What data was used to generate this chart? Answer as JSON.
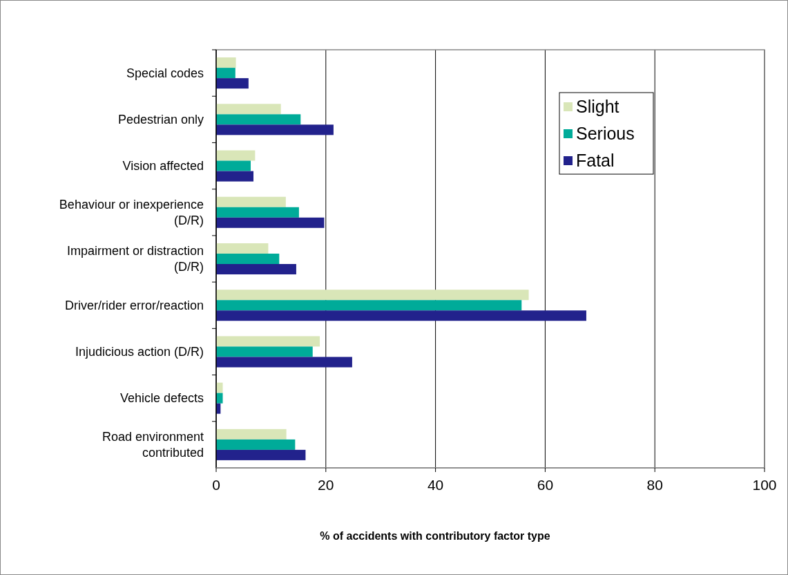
{
  "chart_data": {
    "type": "bar",
    "orientation": "horizontal",
    "xlabel": "% of accidents with contributory factor type",
    "categories": [
      "Special codes",
      "Pedestrian only",
      "Vision affected",
      "Behaviour or inexperience (D/R)",
      "Impairment or distraction (D/R)",
      "Driver/rider error/reaction",
      "Injudicious action (D/R)",
      "Vehicle defects",
      "Road environment contributed"
    ],
    "series": [
      {
        "name": "Slight",
        "color": "#d9e6b8",
        "values": [
          3.6,
          11.8,
          7.1,
          12.7,
          9.5,
          57.0,
          18.9,
          1.2,
          12.8
        ]
      },
      {
        "name": "Serious",
        "color": "#00ab99",
        "values": [
          3.5,
          15.4,
          6.3,
          15.1,
          11.5,
          55.7,
          17.6,
          1.2,
          14.4
        ]
      },
      {
        "name": "Fatal",
        "color": "#22228c",
        "values": [
          5.9,
          21.4,
          6.8,
          19.7,
          14.6,
          67.5,
          24.8,
          0.8,
          16.3
        ]
      }
    ],
    "xlim": [
      0,
      100
    ],
    "xticks": [
      0,
      20,
      40,
      60,
      80,
      100
    ],
    "grid": "x",
    "legend": "top right"
  }
}
